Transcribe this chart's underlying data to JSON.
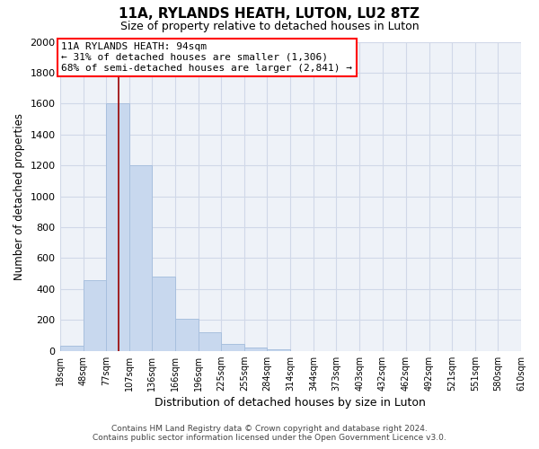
{
  "title": "11A, RYLANDS HEATH, LUTON, LU2 8TZ",
  "subtitle": "Size of property relative to detached houses in Luton",
  "xlabel": "Distribution of detached houses by size in Luton",
  "ylabel": "Number of detached properties",
  "bar_color": "#c8d8ee",
  "bar_edge_color": "#a8c0de",
  "plot_bg_color": "#eef2f8",
  "bin_labels": [
    "18sqm",
    "48sqm",
    "77sqm",
    "107sqm",
    "136sqm",
    "166sqm",
    "196sqm",
    "225sqm",
    "255sqm",
    "284sqm",
    "314sqm",
    "344sqm",
    "373sqm",
    "403sqm",
    "432sqm",
    "462sqm",
    "492sqm",
    "521sqm",
    "551sqm",
    "580sqm",
    "610sqm"
  ],
  "bar_heights": [
    35,
    460,
    1600,
    1200,
    480,
    210,
    120,
    45,
    20,
    10,
    0,
    0,
    0,
    0,
    0,
    0,
    0,
    0,
    0,
    0
  ],
  "ylim": [
    0,
    2000
  ],
  "yticks": [
    0,
    200,
    400,
    600,
    800,
    1000,
    1200,
    1400,
    1600,
    1800,
    2000
  ],
  "annotation_line1": "11A RYLANDS HEATH: 94sqm",
  "annotation_line2": "← 31% of detached houses are smaller (1,306)",
  "annotation_line3": "68% of semi-detached houses are larger (2,841) →",
  "vline_x": 94,
  "vline_color": "#990000",
  "background_color": "#ffffff",
  "grid_color": "#d0d8e8",
  "footer_line1": "Contains HM Land Registry data © Crown copyright and database right 2024.",
  "footer_line2": "Contains public sector information licensed under the Open Government Licence v3.0.",
  "bin_edges_sqm": [
    18,
    48,
    77,
    107,
    136,
    166,
    196,
    225,
    255,
    284,
    314,
    344,
    373,
    403,
    432,
    462,
    492,
    521,
    551,
    580,
    610
  ]
}
